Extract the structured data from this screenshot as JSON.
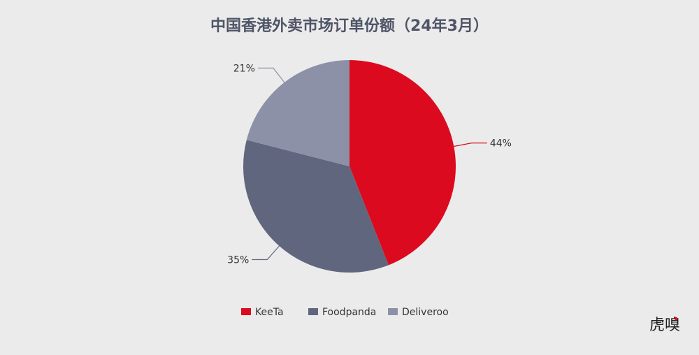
{
  "chart_data": {
    "type": "pie",
    "title": "中国香港外卖市场订单份额（24年3月）",
    "categories": [
      "KeeTa",
      "Foodpanda",
      "Deliveroo"
    ],
    "values": [
      44,
      35,
      21
    ],
    "value_labels": [
      "44%",
      "35%",
      "21%"
    ],
    "colors": [
      "#dc0a1e",
      "#61667f",
      "#8d91a8"
    ],
    "legend": "bottom-center"
  },
  "watermark": {
    "text": "虎嗅",
    "accent": "#dc0a1e"
  }
}
